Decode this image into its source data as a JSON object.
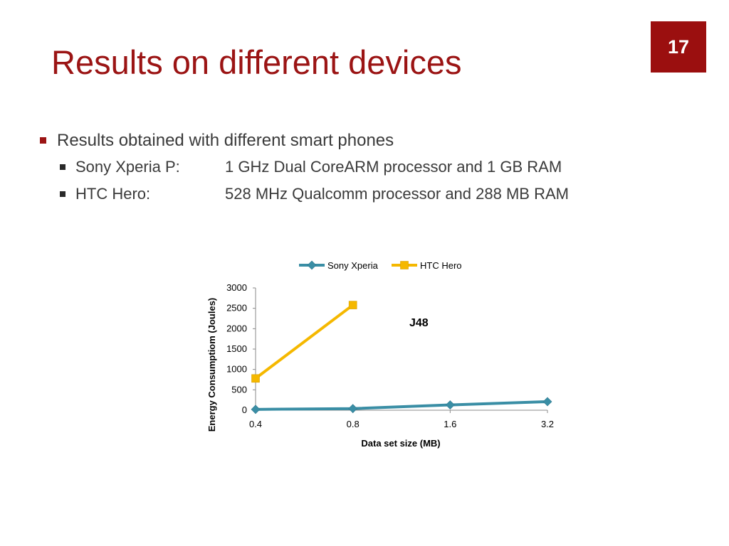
{
  "slide": {
    "title": "Results on different devices",
    "page_number": "17",
    "accent_color": "#9b1414",
    "bullets": [
      {
        "text": "Results obtained with different smart phones",
        "sub": [
          {
            "device": "Sony Xperia P:",
            "spec": "1 GHz Dual CoreARM processor and 1 GB RAM"
          },
          {
            "device": "HTC Hero:",
            "spec": "528 MHz Qualcomm processor and 288 MB RAM"
          }
        ]
      }
    ]
  },
  "chart_data": {
    "type": "line",
    "title": "J48",
    "xlabel": "Data set size (MB)",
    "ylabel": "Energy Consumptiom (Joules)",
    "categories": [
      "0.4",
      "0.8",
      "1.6",
      "3.2"
    ],
    "ylim": [
      0,
      3000
    ],
    "yticks": [
      0,
      500,
      1000,
      1500,
      2000,
      2500,
      3000
    ],
    "legend_position": "top",
    "grid": false,
    "series": [
      {
        "name": "Sony Xperia",
        "color": "#3a8ea5",
        "marker": "diamond",
        "values": [
          20,
          40,
          130,
          210
        ]
      },
      {
        "name": "HTC Hero",
        "color": "#f5b800",
        "marker": "square",
        "values": [
          780,
          2580,
          null,
          null
        ]
      }
    ]
  }
}
